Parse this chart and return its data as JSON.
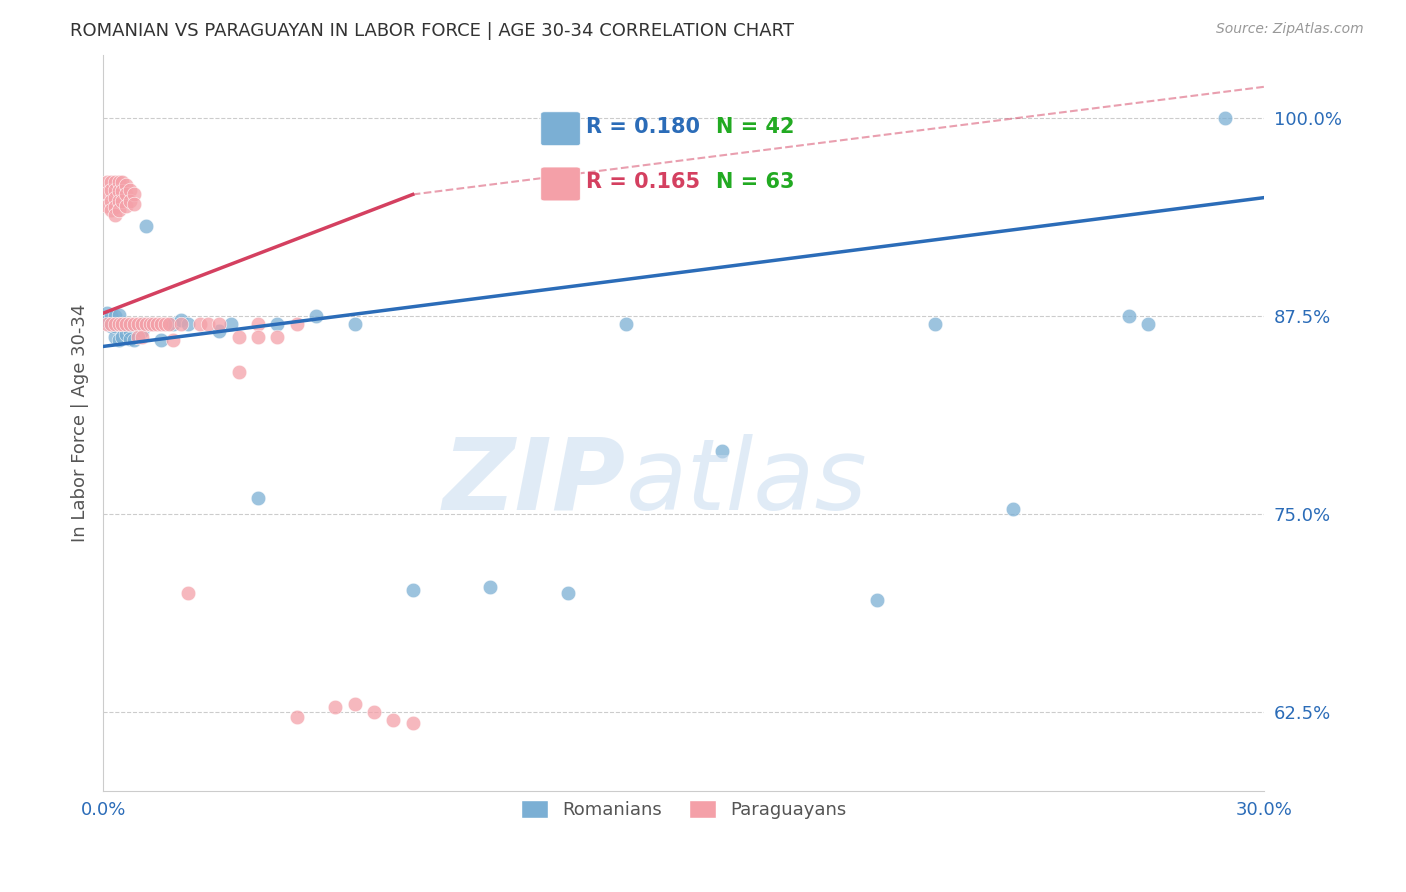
{
  "title": "ROMANIAN VS PARAGUAYAN IN LABOR FORCE | AGE 30-34 CORRELATION CHART",
  "source": "Source: ZipAtlas.com",
  "ylabel": "In Labor Force | Age 30-34",
  "xlim": [
    0.0,
    0.3
  ],
  "ylim": [
    0.575,
    1.04
  ],
  "yticks": [
    0.625,
    0.75,
    0.875,
    1.0
  ],
  "ytick_labels": [
    "62.5%",
    "75.0%",
    "87.5%",
    "100.0%"
  ],
  "xticks": [
    0.0,
    0.05,
    0.1,
    0.15,
    0.2,
    0.25,
    0.3
  ],
  "xtick_labels": [
    "0.0%",
    "",
    "",
    "",
    "",
    "",
    "30.0%"
  ],
  "blue_color": "#7BAFD4",
  "pink_color": "#F4A0A8",
  "blue_line_color": "#2B6CB8",
  "pink_line_color": "#D44060",
  "green_color": "#22AA22",
  "R_blue": 0.18,
  "N_blue": 42,
  "R_pink": 0.165,
  "N_pink": 63,
  "blue_trendline": [
    [
      0.0,
      0.856
    ],
    [
      0.3,
      0.95
    ]
  ],
  "pink_trendline_solid": [
    [
      0.0,
      0.877
    ],
    [
      0.08,
      0.952
    ]
  ],
  "pink_trendline_dashed": [
    [
      0.08,
      0.952
    ],
    [
      0.3,
      1.02
    ]
  ],
  "romanians_x": [
    0.001,
    0.001,
    0.002,
    0.002,
    0.003,
    0.003,
    0.003,
    0.004,
    0.004,
    0.005,
    0.005,
    0.005,
    0.006,
    0.006,
    0.007,
    0.007,
    0.008,
    0.01,
    0.01,
    0.011,
    0.012,
    0.015,
    0.018,
    0.02,
    0.022,
    0.03,
    0.033,
    0.04,
    0.045,
    0.055,
    0.065,
    0.08,
    0.1,
    0.12,
    0.135,
    0.16,
    0.2,
    0.215,
    0.235,
    0.265,
    0.27,
    0.29
  ],
  "romanians_y": [
    0.877,
    0.872,
    0.875,
    0.869,
    0.862,
    0.875,
    0.869,
    0.876,
    0.86,
    0.87,
    0.868,
    0.862,
    0.868,
    0.864,
    0.866,
    0.861,
    0.86,
    0.87,
    0.866,
    0.932,
    0.87,
    0.86,
    0.87,
    0.873,
    0.87,
    0.866,
    0.87,
    0.76,
    0.87,
    0.875,
    0.87,
    0.702,
    0.704,
    0.7,
    0.87,
    0.79,
    0.696,
    0.87,
    0.753,
    0.875,
    0.87,
    1.0
  ],
  "paraguayans_x": [
    0.001,
    0.001,
    0.001,
    0.001,
    0.002,
    0.002,
    0.002,
    0.002,
    0.002,
    0.003,
    0.003,
    0.003,
    0.003,
    0.003,
    0.003,
    0.004,
    0.004,
    0.004,
    0.004,
    0.004,
    0.005,
    0.005,
    0.005,
    0.005,
    0.006,
    0.006,
    0.006,
    0.006,
    0.007,
    0.007,
    0.007,
    0.008,
    0.008,
    0.008,
    0.009,
    0.009,
    0.01,
    0.01,
    0.011,
    0.012,
    0.013,
    0.014,
    0.015,
    0.016,
    0.017,
    0.018,
    0.02,
    0.022,
    0.025,
    0.027,
    0.03,
    0.035,
    0.04,
    0.045,
    0.05,
    0.035,
    0.04,
    0.05,
    0.06,
    0.065,
    0.07,
    0.075,
    0.08
  ],
  "paraguayans_y": [
    0.96,
    0.953,
    0.945,
    0.87,
    0.96,
    0.955,
    0.948,
    0.942,
    0.87,
    0.96,
    0.955,
    0.95,
    0.944,
    0.939,
    0.87,
    0.96,
    0.954,
    0.948,
    0.942,
    0.87,
    0.96,
    0.954,
    0.948,
    0.87,
    0.958,
    0.952,
    0.945,
    0.87,
    0.955,
    0.948,
    0.87,
    0.952,
    0.946,
    0.87,
    0.87,
    0.862,
    0.87,
    0.862,
    0.87,
    0.87,
    0.87,
    0.87,
    0.87,
    0.87,
    0.87,
    0.86,
    0.87,
    0.7,
    0.87,
    0.87,
    0.87,
    0.862,
    0.87,
    0.862,
    0.87,
    0.84,
    0.862,
    0.622,
    0.628,
    0.63,
    0.625,
    0.62,
    0.618
  ]
}
